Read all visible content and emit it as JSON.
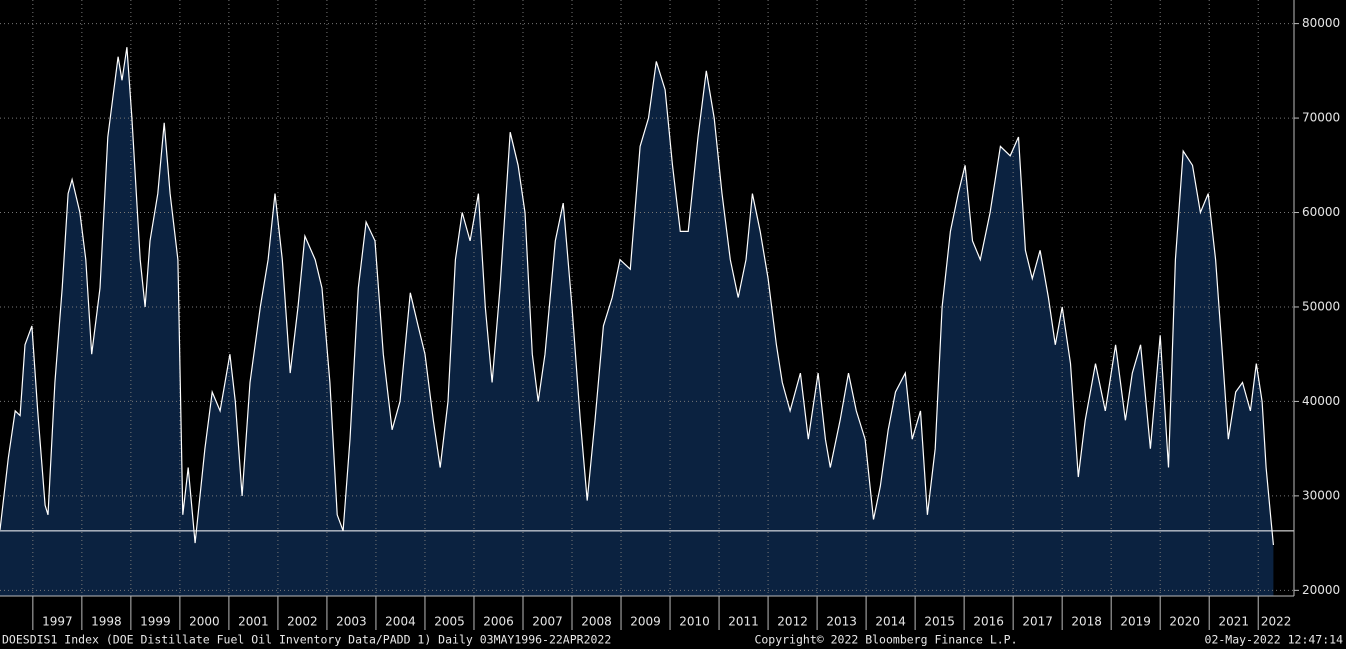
{
  "chart_data": {
    "type": "area",
    "footer_left": "DOESDIS1 Index (DOE Distillate Fuel Oil Inventory Data/PADD 1)  Daily 03MAY1996-22APR2022",
    "footer_center": "Copyright© 2022 Bloomberg Finance L.P.",
    "footer_right": "02-May-2022 12:47:14",
    "x": [
      1996.33,
      1996.5,
      1996.64,
      1996.74,
      1996.84,
      1996.98,
      1997.1,
      1997.25,
      1997.31,
      1997.45,
      1997.6,
      1997.72,
      1997.8,
      1997.96,
      1998.08,
      1998.2,
      1998.37,
      1998.53,
      1998.74,
      1998.82,
      1998.92,
      1999.02,
      1999.19,
      1999.29,
      1999.39,
      1999.55,
      1999.68,
      1999.8,
      1999.96,
      2000.06,
      2000.17,
      2000.31,
      2000.51,
      2000.66,
      2000.82,
      2001.02,
      2001.13,
      2001.27,
      2001.43,
      2001.64,
      2001.8,
      2001.94,
      2002.09,
      2002.25,
      2002.41,
      2002.55,
      2002.76,
      2002.9,
      2003.06,
      2003.21,
      2003.33,
      2003.47,
      2003.64,
      2003.8,
      2003.98,
      2004.15,
      2004.33,
      2004.49,
      2004.7,
      2004.86,
      2005.0,
      2005.17,
      2005.31,
      2005.47,
      2005.62,
      2005.76,
      2005.92,
      2006.09,
      2006.23,
      2006.37,
      2006.53,
      2006.74,
      2006.9,
      2007.04,
      2007.19,
      2007.31,
      2007.45,
      2007.66,
      2007.82,
      2008.0,
      2008.17,
      2008.31,
      2008.47,
      2008.64,
      2008.82,
      2008.98,
      2009.19,
      2009.39,
      2009.56,
      2009.72,
      2009.9,
      2010.05,
      2010.21,
      2010.37,
      2010.57,
      2010.74,
      2010.9,
      2011.06,
      2011.23,
      2011.39,
      2011.55,
      2011.68,
      2011.84,
      2012.0,
      2012.17,
      2012.29,
      2012.45,
      2012.66,
      2012.82,
      2013.02,
      2013.17,
      2013.27,
      2013.47,
      2013.64,
      2013.8,
      2013.98,
      2014.15,
      2014.29,
      2014.45,
      2014.6,
      2014.8,
      2014.94,
      2015.11,
      2015.25,
      2015.41,
      2015.55,
      2015.72,
      2015.88,
      2016.02,
      2016.17,
      2016.33,
      2016.53,
      2016.74,
      2016.94,
      2017.11,
      2017.25,
      2017.39,
      2017.55,
      2017.72,
      2017.86,
      2018.0,
      2018.17,
      2018.33,
      2018.47,
      2018.68,
      2018.88,
      2019.09,
      2019.29,
      2019.43,
      2019.6,
      2019.8,
      2020.0,
      2020.17,
      2020.31,
      2020.47,
      2020.66,
      2020.82,
      2020.98,
      2021.13,
      2021.27,
      2021.39,
      2021.54,
      2021.68,
      2021.84,
      2021.96,
      2022.08,
      2022.16,
      2022.25,
      2022.31
    ],
    "values": [
      26400,
      34000,
      39000,
      38500,
      46000,
      48000,
      39000,
      29000,
      28000,
      42000,
      52000,
      62000,
      63500,
      60000,
      55000,
      45000,
      52000,
      68000,
      76500,
      74000,
      77500,
      70000,
      55000,
      50000,
      57000,
      62000,
      69500,
      62000,
      55000,
      28000,
      33000,
      25000,
      35000,
      41000,
      39000,
      45000,
      40000,
      30000,
      42000,
      50000,
      55000,
      62000,
      55000,
      43000,
      50000,
      57500,
      55000,
      52000,
      42000,
      28000,
      26300,
      36000,
      52000,
      59000,
      57000,
      45000,
      37000,
      40000,
      51500,
      48000,
      45000,
      38000,
      33000,
      40000,
      55000,
      60000,
      57000,
      62000,
      50000,
      42000,
      52000,
      68500,
      65000,
      60000,
      45000,
      40000,
      45000,
      57000,
      61000,
      50000,
      38000,
      29500,
      38000,
      48000,
      51000,
      55000,
      54000,
      67000,
      70000,
      76000,
      73000,
      65000,
      58000,
      58000,
      68000,
      75000,
      70000,
      62000,
      55000,
      51000,
      55000,
      62000,
      58000,
      53000,
      46000,
      42000,
      39000,
      43000,
      36000,
      43000,
      36000,
      33000,
      38000,
      43000,
      39000,
      36000,
      27500,
      31000,
      37000,
      41000,
      43000,
      36000,
      39000,
      28000,
      35000,
      50000,
      58000,
      62000,
      65000,
      57000,
      55000,
      60000,
      67000,
      66000,
      68000,
      56000,
      53000,
      56000,
      51000,
      46000,
      50000,
      44000,
      32000,
      38000,
      44000,
      39000,
      46000,
      38000,
      43000,
      46000,
      35000,
      47000,
      33000,
      55000,
      66500,
      65000,
      60000,
      62000,
      55000,
      45000,
      36000,
      41000,
      42000,
      39000,
      44000,
      40000,
      33000,
      28000,
      24800
    ],
    "color": "#0b2240",
    "line_color": "#ffffff",
    "reference_line": 26300,
    "xlim": [
      1996.33,
      2022.73
    ],
    "ylim": [
      19400,
      82500
    ],
    "xticks": [
      1997,
      1998,
      1999,
      2000,
      2001,
      2002,
      2003,
      2004,
      2005,
      2006,
      2007,
      2008,
      2009,
      2010,
      2011,
      2012,
      2013,
      2014,
      2015,
      2016,
      2017,
      2018,
      2019,
      2020,
      2021,
      2022
    ],
    "yticks": [
      20000,
      30000,
      40000,
      50000,
      60000,
      70000,
      80000
    ],
    "grid": true
  }
}
